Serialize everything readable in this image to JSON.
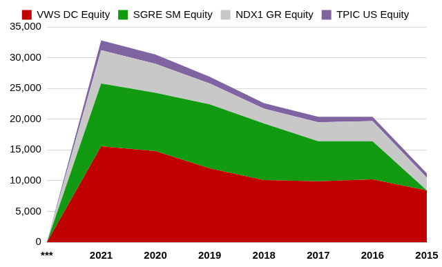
{
  "chart_data": {
    "type": "area",
    "stacked": true,
    "legend": "top",
    "grid": true,
    "categories": [
      "***",
      "2021",
      "2020",
      "2019",
      "2018",
      "2017",
      "2016",
      "2015"
    ],
    "series": [
      {
        "name": "VWS DC Equity",
        "color": "#c00000",
        "values": [
          0,
          15600,
          14800,
          12000,
          10100,
          9900,
          10200,
          8400
        ]
      },
      {
        "name": "SGRE SM Equity",
        "color": "#129b12",
        "values": [
          0,
          10200,
          9500,
          10400,
          9200,
          6500,
          6200,
          0
        ]
      },
      {
        "name": "NDX1 GR Equity",
        "color": "#c8c8c8",
        "values": [
          0,
          5400,
          4700,
          3400,
          2400,
          3100,
          3300,
          2100
        ]
      },
      {
        "name": "TPIC US Equity",
        "color": "#8064a2",
        "values": [
          0,
          1600,
          1500,
          1100,
          900,
          900,
          700,
          700
        ]
      }
    ],
    "ylim": [
      0,
      35000
    ],
    "yticks": [
      0,
      {
        "value": 5000,
        "label": "5,000"
      },
      {
        "value": 10000,
        "label": "10,000"
      },
      {
        "value": 15000,
        "label": "15,000"
      },
      {
        "value": 20000,
        "label": "20,000"
      },
      {
        "value": 25000,
        "label": "25,000"
      },
      {
        "value": 30000,
        "label": "30,000"
      },
      {
        "value": 35000,
        "label": "35,000"
      }
    ]
  }
}
